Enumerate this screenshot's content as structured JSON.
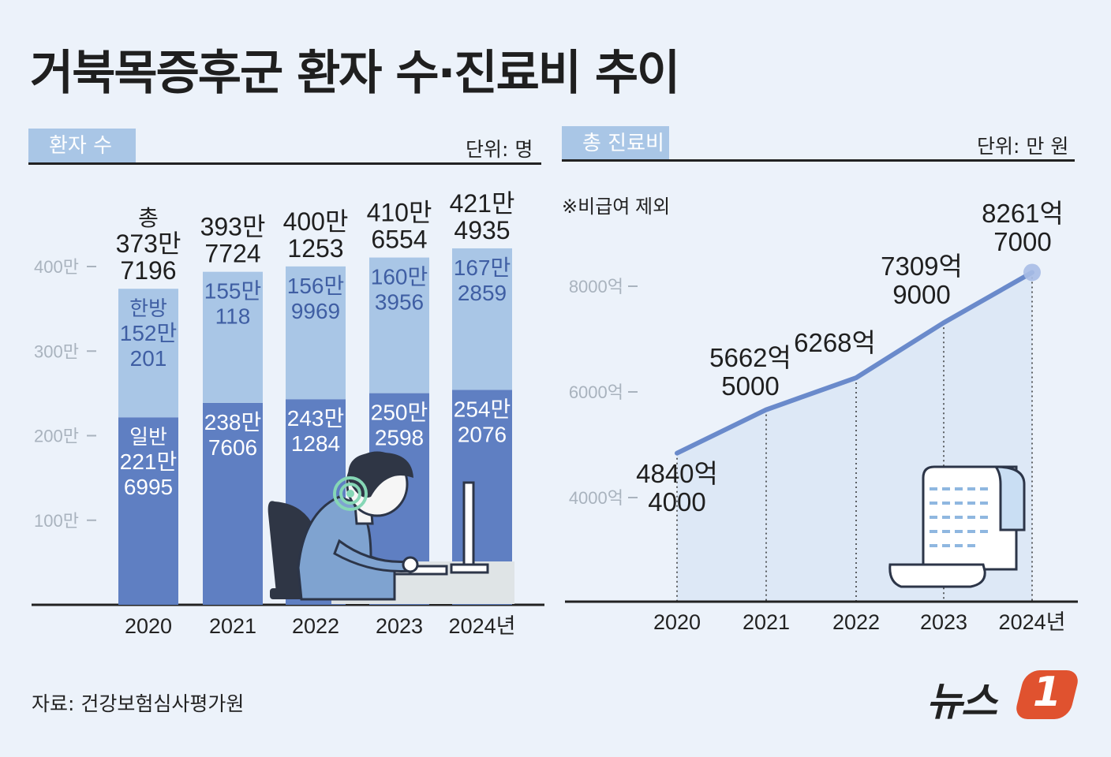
{
  "title": "거북목증후군 환자 수·진료비 추이",
  "source": "자료: 건강보험심사평가원",
  "logo": {
    "text": "뉴스",
    "number": "1"
  },
  "colors": {
    "background": "#ecf2fa",
    "light_bar": "#a9c6e6",
    "dark_bar": "#5f7fc2",
    "line": "#6a8acb",
    "tab": "#a9c6e6"
  },
  "patients": {
    "tab_label": "환자 수",
    "unit": "단위: 명",
    "first_total_prefix": "총",
    "first_light_prefix": "한방",
    "first_dark_prefix": "일반"
  },
  "costs": {
    "tab_label": "총 진료비",
    "unit": "단위: 만 원",
    "note": "※비급여 제외"
  },
  "chart_data": [
    {
      "type": "bar",
      "stacked": true,
      "title": "환자 수",
      "unit_label": "단위: 명",
      "ylabel": "",
      "ylim": [
        0,
        4500000
      ],
      "yticks": [
        1000000,
        2000000,
        3000000,
        4000000
      ],
      "ytick_labels": [
        "100만",
        "200만",
        "300만",
        "400만"
      ],
      "categories": [
        "2020",
        "2021",
        "2022",
        "2023",
        "2024년"
      ],
      "series": [
        {
          "name": "일반",
          "values": [
            2216995,
            2387606,
            2431284,
            2502598,
            2542076
          ],
          "labels": [
            [
              "221만",
              "6995"
            ],
            [
              "238만",
              "7606"
            ],
            [
              "243만",
              "1284"
            ],
            [
              "250만",
              "2598"
            ],
            [
              "254만",
              "2076"
            ]
          ]
        },
        {
          "name": "한방",
          "values": [
            1520201,
            1550118,
            1569969,
            1603956,
            1672859
          ],
          "labels": [
            [
              "152만",
              "201"
            ],
            [
              "155만",
              "118"
            ],
            [
              "156만",
              "9969"
            ],
            [
              "160만",
              "3956"
            ],
            [
              "167만",
              "2859"
            ]
          ]
        }
      ],
      "totals": [
        3737196,
        3937724,
        4001253,
        4106554,
        4214935
      ],
      "total_labels": [
        [
          "373만",
          "7196"
        ],
        [
          "393만",
          "7724"
        ],
        [
          "400만",
          "1253"
        ],
        [
          "410만",
          "6554"
        ],
        [
          "421만",
          "4935"
        ]
      ]
    },
    {
      "type": "line",
      "title": "총 진료비",
      "unit_label": "단위: 만 원",
      "note": "※비급여 제외",
      "ylim": [
        2000,
        9000
      ],
      "yticks": [
        4000,
        6000,
        8000
      ],
      "ytick_labels": [
        "4000억",
        "6000억",
        "8000억"
      ],
      "categories": [
        "2020",
        "2021",
        "2022",
        "2023",
        "2024년"
      ],
      "series": [
        {
          "name": "총 진료비",
          "values": [
            4840.4,
            5662.5,
            6268,
            7309.9,
            8261.7
          ],
          "labels": [
            [
              "4840억",
              "4000"
            ],
            [
              "5662억",
              "5000"
            ],
            [
              "6268억",
              ""
            ],
            [
              "7309억",
              "9000"
            ],
            [
              "8261억",
              "7000"
            ]
          ]
        }
      ]
    }
  ]
}
